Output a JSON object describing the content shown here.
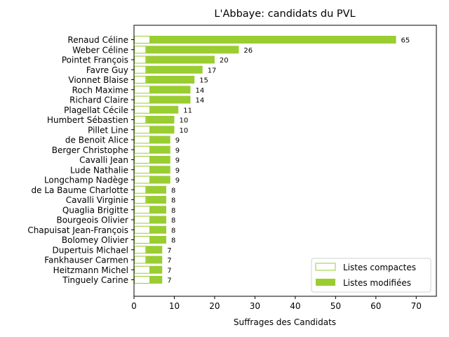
{
  "chart_data": {
    "type": "bar",
    "orientation": "horizontal",
    "stacked": true,
    "title": "L'Abbaye: candidats du PVL",
    "xlabel": "Suffrages des Candidats",
    "ylabel": "",
    "xlim": [
      0,
      75
    ],
    "xticks": [
      0,
      10,
      20,
      30,
      40,
      50,
      60,
      70
    ],
    "grid": false,
    "legend_position": "bottom-right",
    "accent_color": "#9acd32",
    "categories": [
      "Renaud Céline",
      "Weber Céline",
      "Pointet François",
      "Favre Guy",
      "Vionnet Blaise",
      "Roch Maxime",
      "Richard Claire",
      "Plagellat Cécile",
      "Humbert Sébastien",
      "Pillet Line",
      "de Benoit Alice",
      "Berger Christophe",
      "Cavalli Jean",
      "Lude Nathalie",
      "Longchamp Nadège",
      "de La Baume Charlotte",
      "Cavalli Virginie",
      "Quaglia Brigitte",
      "Bourgeois Olivier",
      "Chapuisat Jean-François",
      "Bolomey Olivier",
      "Dupertuis Michael",
      "Fankhauser Carmen",
      "Heitzmann Michel",
      "Tinguely Carine"
    ],
    "series": [
      {
        "name": "Listes compactes",
        "style": "outline",
        "values": [
          4,
          3,
          3,
          3,
          3,
          4,
          4,
          4,
          3,
          4,
          4,
          4,
          4,
          4,
          4,
          3,
          3,
          4,
          4,
          4,
          4,
          3,
          3,
          4,
          4
        ]
      },
      {
        "name": "Listes modifiées",
        "style": "filled",
        "values": [
          61,
          23,
          17,
          14,
          12,
          10,
          10,
          7,
          7,
          6,
          5,
          5,
          5,
          5,
          5,
          5,
          5,
          4,
          4,
          4,
          4,
          4,
          4,
          3,
          3
        ]
      }
    ],
    "totals": [
      65,
      26,
      20,
      17,
      15,
      14,
      14,
      11,
      10,
      10,
      9,
      9,
      9,
      9,
      9,
      8,
      8,
      8,
      8,
      8,
      8,
      7,
      7,
      7,
      7
    ]
  }
}
